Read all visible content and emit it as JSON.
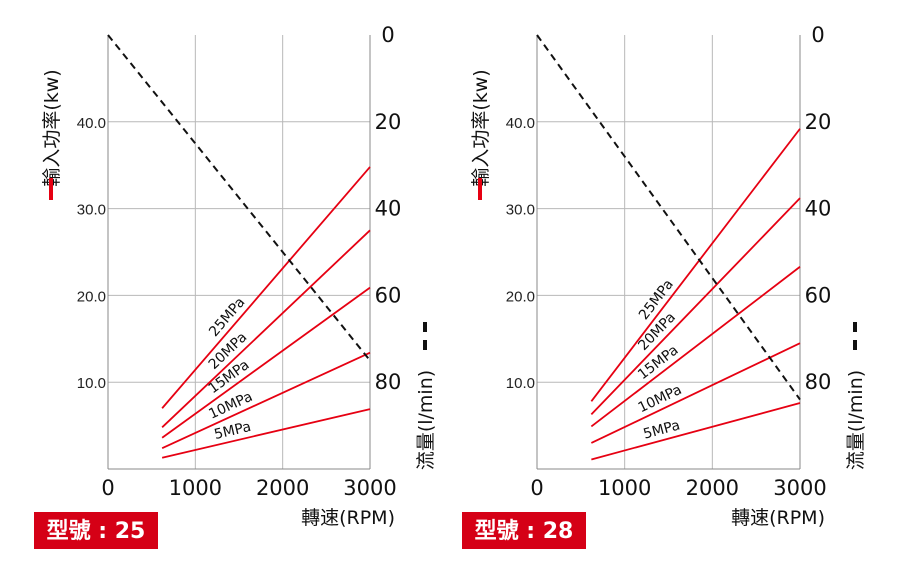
{
  "chart_data": [
    {
      "type": "line",
      "title": "",
      "badge": "型號 : 25",
      "xlabel": "轉速(RPM)",
      "ylabel_left": "輸入功率(kw)",
      "ylabel_right": "流量(l/min)",
      "xlim": [
        0,
        3000
      ],
      "ylim_left": [
        0,
        50
      ],
      "ylim_right": [
        100,
        0
      ],
      "x_ticks": [
        "0",
        "1000",
        "2000",
        "3000"
      ],
      "y_ticks_left": [
        "10.0",
        "20.0",
        "30.0",
        "40.0"
      ],
      "y_ticks_right": [
        "0",
        "20",
        "40",
        "60",
        "80"
      ],
      "grid": true,
      "series": [
        {
          "name": "5MPa",
          "axis": "left",
          "color": "#e60012",
          "style": "solid",
          "x": [
            620,
            3000
          ],
          "y": [
            1.3,
            6.9
          ]
        },
        {
          "name": "10MPa",
          "axis": "left",
          "color": "#e60012",
          "style": "solid",
          "x": [
            620,
            3000
          ],
          "y": [
            2.4,
            13.4
          ]
        },
        {
          "name": "15MPa",
          "axis": "left",
          "color": "#e60012",
          "style": "solid",
          "x": [
            620,
            3000
          ],
          "y": [
            3.6,
            20.9
          ]
        },
        {
          "name": "20MPa",
          "axis": "left",
          "color": "#e60012",
          "style": "solid",
          "x": [
            620,
            3000
          ],
          "y": [
            4.8,
            27.5
          ]
        },
        {
          "name": "25MPa",
          "axis": "left",
          "color": "#e60012",
          "style": "solid",
          "x": [
            620,
            3000
          ],
          "y": [
            7.0,
            34.8
          ]
        },
        {
          "name": "",
          "axis": "right",
          "color": "#111111",
          "style": "dashed",
          "x": [
            0,
            3000
          ],
          "y": [
            0,
            75
          ]
        }
      ]
    },
    {
      "type": "line",
      "title": "",
      "badge": "型號 : 28",
      "xlabel": "轉速(RPM)",
      "ylabel_left": "輸入功率(kw)",
      "ylabel_right": "流量(l/min)",
      "xlim": [
        0,
        3000
      ],
      "ylim_left": [
        0,
        50
      ],
      "ylim_right": [
        100,
        0
      ],
      "x_ticks": [
        "0",
        "1000",
        "2000",
        "3000"
      ],
      "y_ticks_left": [
        "10.0",
        "20.0",
        "30.0",
        "40.0"
      ],
      "y_ticks_right": [
        "0",
        "20",
        "40",
        "60",
        "80"
      ],
      "grid": true,
      "series": [
        {
          "name": "5MPa",
          "axis": "left",
          "color": "#e60012",
          "style": "solid",
          "x": [
            620,
            3000
          ],
          "y": [
            1.1,
            7.6
          ]
        },
        {
          "name": "10MPa",
          "axis": "left",
          "color": "#e60012",
          "style": "solid",
          "x": [
            620,
            3000
          ],
          "y": [
            3.0,
            14.5
          ]
        },
        {
          "name": "15MPa",
          "axis": "left",
          "color": "#e60012",
          "style": "solid",
          "x": [
            620,
            3000
          ],
          "y": [
            4.9,
            23.3
          ]
        },
        {
          "name": "20MPa",
          "axis": "left",
          "color": "#e60012",
          "style": "solid",
          "x": [
            620,
            3000
          ],
          "y": [
            6.3,
            31.2
          ]
        },
        {
          "name": "25MPa",
          "axis": "left",
          "color": "#e60012",
          "style": "solid",
          "x": [
            620,
            3000
          ],
          "y": [
            7.8,
            39.2
          ]
        },
        {
          "name": "",
          "axis": "right",
          "color": "#111111",
          "style": "dashed",
          "x": [
            0,
            3000
          ],
          "y": [
            0,
            84
          ]
        }
      ]
    }
  ]
}
